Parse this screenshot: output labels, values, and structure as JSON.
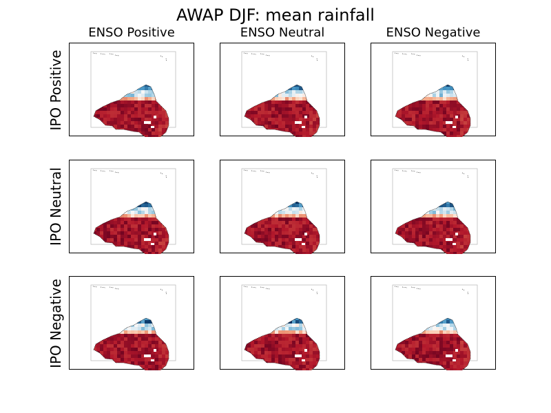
{
  "chart_data": {
    "type": "heatmap",
    "title": "AWAP DJF: mean rainfall",
    "column_labels": [
      "ENSO Positive",
      "ENSO Neutral",
      "ENSO Negative"
    ],
    "row_labels": [
      "IPO Positive",
      "IPO Neutral",
      "IPO Negative"
    ],
    "panel_type": "map",
    "region": "Australia",
    "colormap": "RdBu",
    "colorbar_shown": false,
    "grid": false,
    "note": "Each panel shows a gridded map of mean DJF rainfall; southern and interior regions shaded dark red, northern tropical coast shaded blue."
  }
}
